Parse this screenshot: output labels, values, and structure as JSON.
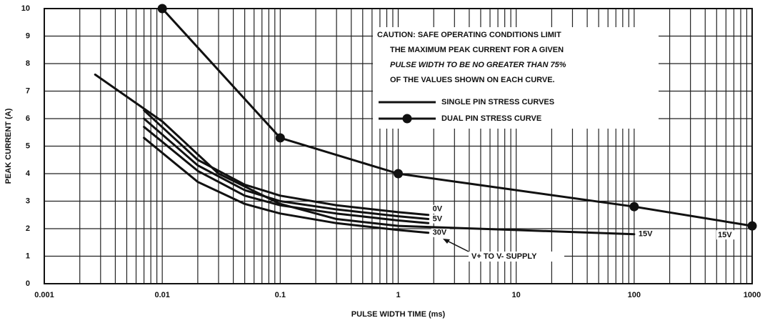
{
  "chart_data": {
    "type": "line",
    "x_label": "PULSE WIDTH TIME (ms)",
    "y_label": "PEAK CURRENT (A)",
    "log_x": true,
    "grid": true,
    "xlim": [
      0.001,
      1000
    ],
    "xticks": [
      0.001,
      0.01,
      0.1,
      1,
      10,
      100,
      1000
    ],
    "ylim": [
      0,
      10
    ],
    "yticks": [
      0,
      1,
      2,
      3,
      4,
      5,
      6,
      7,
      8,
      9,
      10
    ],
    "color": "#111111",
    "caution": [
      "CAUTION: SAFE OPERATING CONDITIONS LIMIT",
      "THE MAXIMUM PEAK CURRENT FOR A GIVEN",
      "PULSE WIDTH TO BE NO GREATER THAN 75%",
      "OF THE VALUES SHOWN ON EACH CURVE."
    ],
    "supply_note": "V+ TO V- SUPPLY",
    "single_pin": {
      "label": "SINGLE PIN STRESS CURVES",
      "curves": [
        {
          "name": "0V",
          "x": [
            0.007,
            0.02,
            0.05,
            0.1,
            0.3,
            1,
            1.8
          ],
          "values": [
            6.3,
            4.5,
            3.6,
            3.2,
            2.85,
            2.6,
            2.5
          ]
        },
        {
          "name": "5V",
          "x": [
            0.007,
            0.02,
            0.05,
            0.1,
            0.3,
            1,
            1.8
          ],
          "values": [
            6.0,
            4.3,
            3.4,
            3.0,
            2.7,
            2.45,
            2.35
          ]
        },
        {
          "x": [
            0.007,
            0.02,
            0.05,
            0.1,
            0.3,
            1,
            1.8
          ],
          "values": [
            5.7,
            4.1,
            3.2,
            2.85,
            2.55,
            2.3,
            2.2
          ]
        },
        {
          "name": "30V",
          "x": [
            0.007,
            0.02,
            0.05,
            0.1,
            0.3,
            1,
            1.8
          ],
          "values": [
            5.3,
            3.7,
            2.9,
            2.55,
            2.2,
            1.95,
            1.85
          ]
        },
        {
          "name": "15V",
          "x": [
            0.0027,
            0.01,
            0.03,
            0.1,
            0.3,
            1,
            10,
            100
          ],
          "values": [
            7.6,
            5.9,
            4.0,
            2.9,
            2.35,
            2.1,
            1.95,
            1.8
          ]
        }
      ]
    },
    "dual_pin": {
      "label": "DUAL PIN STRESS CURVE",
      "name": "15V",
      "x": [
        0.01,
        0.1,
        1,
        100,
        1000
      ],
      "values": [
        10,
        5.3,
        4,
        2.8,
        2.1
      ]
    }
  }
}
